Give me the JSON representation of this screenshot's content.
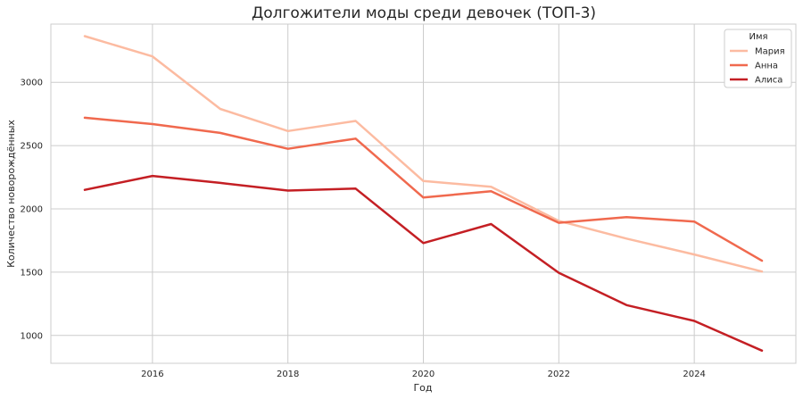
{
  "chart_data": {
    "type": "line",
    "title": "Долгожители моды среди девочек (ТОП-3)",
    "xlabel": "Год",
    "ylabel": "Количество новорождённых",
    "xlim": [
      2014.5,
      2025.5
    ],
    "ylim": [
      780,
      3460
    ],
    "x_ticks": [
      2016,
      2018,
      2020,
      2022,
      2024
    ],
    "y_ticks": [
      1000,
      1500,
      2000,
      2500,
      3000
    ],
    "grid": true,
    "legend": {
      "title": "Имя",
      "placement": "top-right"
    },
    "x": [
      2015,
      2016,
      2017,
      2018,
      2019,
      2020,
      2021,
      2022,
      2023,
      2024,
      2025
    ],
    "series": [
      {
        "name": "Мария",
        "color": "#fcbba1",
        "values": [
          3365,
          3205,
          2790,
          2615,
          2695,
          2220,
          2175,
          1905,
          1765,
          1640,
          1505
        ]
      },
      {
        "name": "Анна",
        "color": "#f0694e",
        "values": [
          2720,
          2670,
          2600,
          2475,
          2555,
          2090,
          2140,
          1890,
          1935,
          1900,
          1590
        ]
      },
      {
        "name": "Алиса",
        "color": "#c41f24",
        "values": [
          2150,
          2260,
          2205,
          2145,
          2160,
          1730,
          1880,
          1495,
          1240,
          1115,
          880
        ]
      }
    ]
  }
}
